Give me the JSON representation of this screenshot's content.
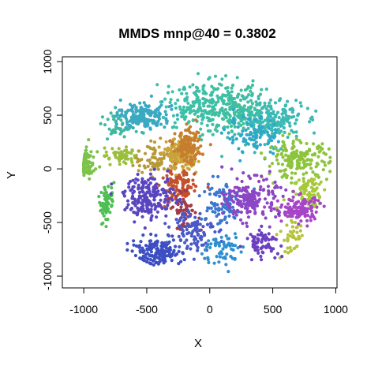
{
  "chart_data": {
    "type": "scatter",
    "title": "MMDS mnp@40 = 0.3802",
    "xlabel": "X",
    "ylabel": "Y",
    "xlim": [
      -1170,
      1010
    ],
    "ylim": [
      -1110,
      1045
    ],
    "x_ticks": [
      -1000,
      -500,
      0,
      500,
      1000
    ],
    "x_tick_labels": [
      "-1000",
      "-500",
      "0",
      "500",
      "1000"
    ],
    "y_ticks": [
      -1000,
      -500,
      0,
      500,
      1000
    ],
    "y_tick_labels": [
      "-1000",
      "-500",
      "0",
      "500",
      "1000"
    ],
    "grid": false,
    "legend": "none",
    "point_count_estimate": 2500,
    "clusters": [
      {
        "color": "#7cc34a",
        "center": [
          -1000,
          60
        ],
        "spread": [
          90,
          110
        ],
        "n": 110
      },
      {
        "color": "#4fbf52",
        "center": [
          -820,
          -320
        ],
        "spread": [
          60,
          160
        ],
        "n": 70
      },
      {
        "color": "#9bbf3c",
        "center": [
          -700,
          120
        ],
        "spread": [
          120,
          80
        ],
        "n": 60
      },
      {
        "color": "#3fb8a0",
        "center": [
          -700,
          400
        ],
        "spread": [
          140,
          120
        ],
        "n": 50
      },
      {
        "color": "#3aa9c2",
        "center": [
          -520,
          500
        ],
        "spread": [
          170,
          120
        ],
        "n": 170
      },
      {
        "color": "#3cc0a8",
        "center": [
          -100,
          600
        ],
        "spread": [
          220,
          200
        ],
        "n": 160
      },
      {
        "color": "#3fbfa0",
        "center": [
          200,
          550
        ],
        "spread": [
          230,
          210
        ],
        "n": 240
      },
      {
        "color": "#3cb9b4",
        "center": [
          500,
          450
        ],
        "spread": [
          220,
          180
        ],
        "n": 180
      },
      {
        "color": "#2fa8c8",
        "center": [
          350,
          300
        ],
        "spread": [
          200,
          160
        ],
        "n": 90
      },
      {
        "color": "#8cc43c",
        "center": [
          700,
          80
        ],
        "spread": [
          220,
          160
        ],
        "n": 180
      },
      {
        "color": "#a7c93a",
        "center": [
          800,
          -200
        ],
        "spread": [
          120,
          140
        ],
        "n": 70
      },
      {
        "color": "#b6c23a",
        "center": [
          650,
          -600
        ],
        "spread": [
          100,
          200
        ],
        "n": 45
      },
      {
        "color": "#b69a3a",
        "center": [
          -420,
          90
        ],
        "spread": [
          160,
          130
        ],
        "n": 80
      },
      {
        "color": "#c9a23a",
        "center": [
          -220,
          140
        ],
        "spread": [
          110,
          130
        ],
        "n": 200
      },
      {
        "color": "#c77d2e",
        "center": [
          -170,
          200
        ],
        "spread": [
          90,
          140
        ],
        "n": 120
      },
      {
        "color": "#c4512e",
        "center": [
          -250,
          -180
        ],
        "spread": [
          120,
          170
        ],
        "n": 110
      },
      {
        "color": "#a23a48",
        "center": [
          -200,
          -400
        ],
        "spread": [
          100,
          150
        ],
        "n": 60
      },
      {
        "color": "#5a45c0",
        "center": [
          -480,
          -260
        ],
        "spread": [
          180,
          180
        ],
        "n": 200
      },
      {
        "color": "#3c4ec2",
        "center": [
          -420,
          -780
        ],
        "spread": [
          180,
          120
        ],
        "n": 160
      },
      {
        "color": "#4a58c8",
        "center": [
          -130,
          -560
        ],
        "spread": [
          150,
          180
        ],
        "n": 100
      },
      {
        "color": "#3d76cf",
        "center": [
          80,
          -320
        ],
        "spread": [
          150,
          200
        ],
        "n": 90
      },
      {
        "color": "#2f8fd0",
        "center": [
          100,
          -750
        ],
        "spread": [
          140,
          150
        ],
        "n": 60
      },
      {
        "color": "#8b46c5",
        "center": [
          330,
          -280
        ],
        "spread": [
          180,
          170
        ],
        "n": 180
      },
      {
        "color": "#a645c6",
        "center": [
          700,
          -380
        ],
        "spread": [
          160,
          120
        ],
        "n": 120
      },
      {
        "color": "#6c3fc0",
        "center": [
          420,
          -680
        ],
        "spread": [
          120,
          110
        ],
        "n": 70
      }
    ]
  }
}
